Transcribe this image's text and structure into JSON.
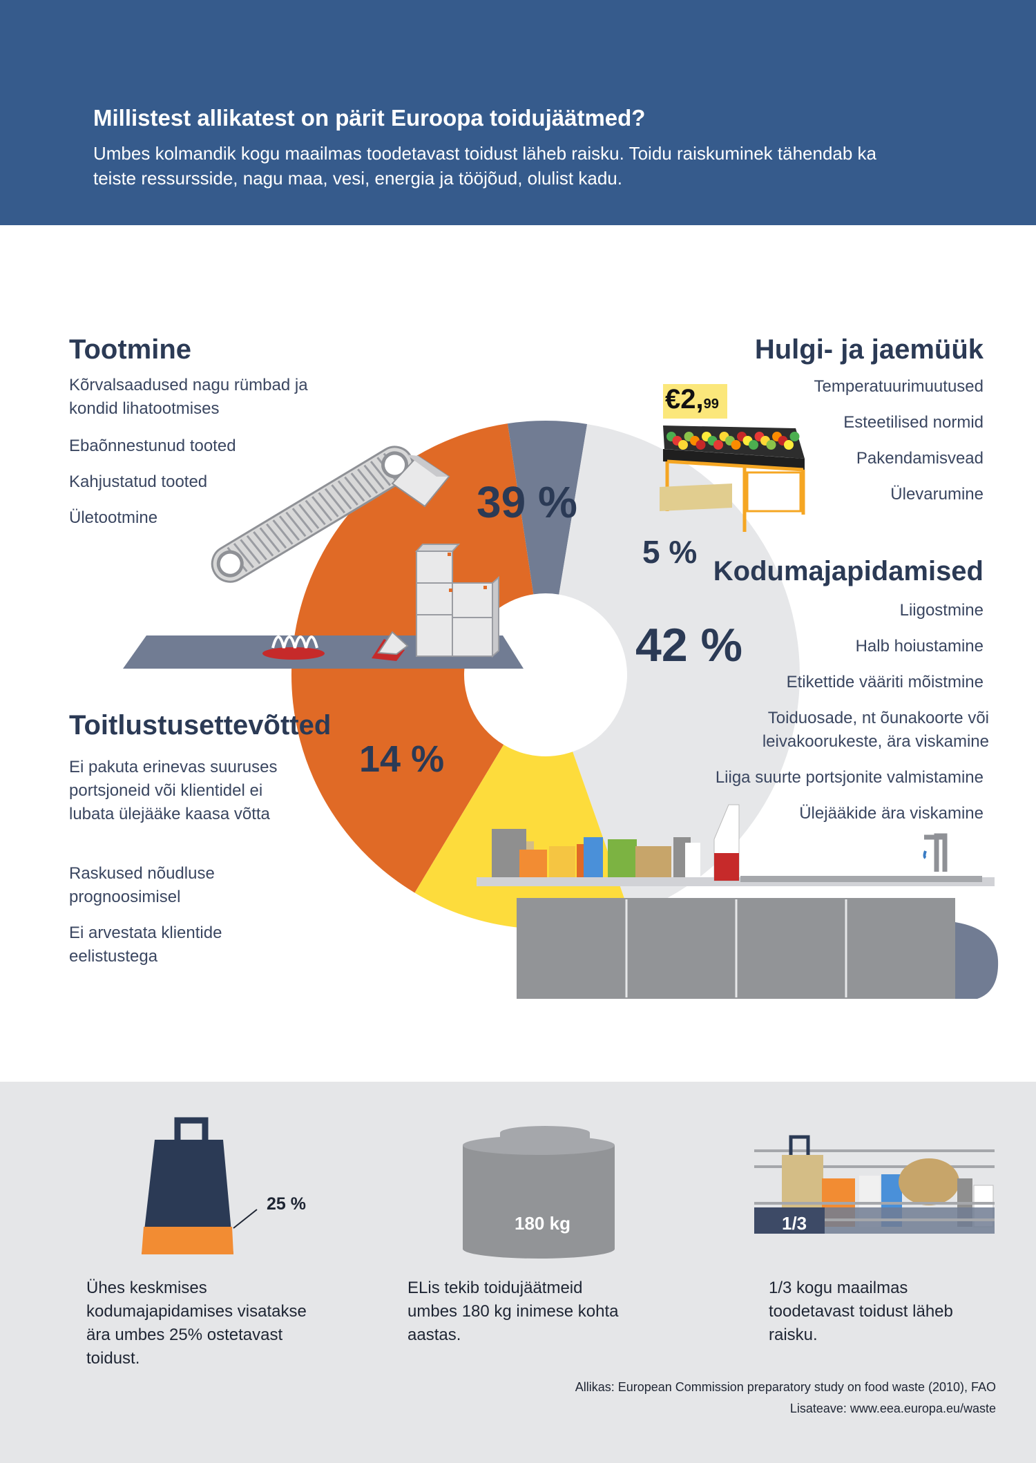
{
  "header": {
    "title": "Millistest allikatest on pärit Euroopa toidujäätmed?",
    "subtitle": "Umbes kolmandik kogu maailmas toodetavast toidust läheb raisku. Toidu raiskuminek tähendab ka teiste ressursside, nagu maa, vesi, energia ja tööjõud, olulist kadu."
  },
  "chart_data": {
    "type": "pie",
    "categories": [
      "Tootmine",
      "Hulgi- ja jaemüük",
      "Kodumajapidamised",
      "Toitlustusettevõtted"
    ],
    "values": [
      39,
      5,
      42,
      14
    ],
    "labels": [
      "39 %",
      "5 %",
      "42 %",
      "14 %"
    ],
    "colors": [
      "#e06a26",
      "#717c93",
      "#e6e7e9",
      "#fddc3c"
    ]
  },
  "sections": {
    "production": {
      "title": "Tootmine",
      "items": [
        "Kõrvalsaadused nagu rümbad ja kondid lihatootmises",
        "Ebaõnnestunud tooted",
        "Kahjustatud tooted",
        "Ületootmine"
      ]
    },
    "retail": {
      "title": "Hulgi- ja jaemüük",
      "price_main": "€2,",
      "price_cents": "99",
      "items": [
        "Temperatuurimuutused",
        "Esteetilised normid",
        "Pakendamisvead",
        "Ülevarumine"
      ]
    },
    "households": {
      "title": "Kodumajapidamised",
      "items": [
        "Liigostmine",
        "Halb hoiustamine",
        "Etikettide vääriti mõistmine",
        "Toiduosade, nt õunakoorte või leivakoorukeste, ära viskamine",
        "Liiga suurte portsjonite valmistamine",
        "Ülejääkide ära viskamine"
      ]
    },
    "catering": {
      "title": "Toitlustusettevõtted",
      "items": [
        "Ei pakuta erinevas suuruses portsjoneid või klientidel ei lubata ülejääke kaasa võtta",
        "Raskused nõudluse prognoosimisel",
        "Ei arvestata klientide eelistustega"
      ]
    }
  },
  "footer": {
    "stats": [
      {
        "label": "25 %",
        "value": 0.25,
        "text": "Ühes keskmises kodumajapidamises visatakse ära umbes 25% ostetavast toidust."
      },
      {
        "label": "180 kg",
        "text": "ELis tekib toidujäätmeid umbes 180 kg inimese kohta aastas."
      },
      {
        "label": "1/3",
        "text": "1/3 kogu maailmas toodetavast toidust läheb raisku."
      }
    ],
    "source": "Allikas: European Commission preparatory study on food waste (2010), FAO",
    "more_info": "Lisateave: www.eea.europa.eu/waste"
  }
}
